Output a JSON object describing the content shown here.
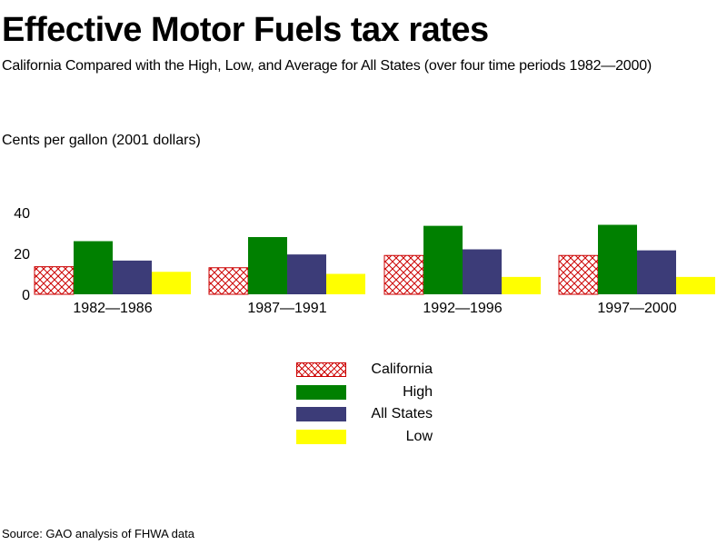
{
  "title": "Effective Motor Fuels tax rates",
  "subtitle": "California Compared with the High, Low, and Average for All States (over four time periods 1982—2000)",
  "source": "Source: GAO analysis of FHWA data",
  "colors": {
    "California": "#cc0000",
    "High": "#008000",
    "All States": "#3c3c78",
    "Low": "#ffff00"
  },
  "chart_data": {
    "type": "bar",
    "title": "Effective Motor Fuels tax rates",
    "subtitle": "California Compared with the High, Low, and Average for All States (over four time periods 1982—2000)",
    "ylabel": "Cents per gallon (2001 dollars)",
    "xlabel": "",
    "categories": [
      "1982—1986",
      "1987—1991",
      "1992—1996",
      "1997—2000"
    ],
    "series": [
      {
        "name": "California",
        "values": [
          13.5,
          13,
          19,
          19
        ]
      },
      {
        "name": "High",
        "values": [
          26,
          28,
          33.5,
          34
        ]
      },
      {
        "name": "All States",
        "values": [
          16.5,
          19.5,
          22,
          21.5
        ]
      },
      {
        "name": "Low",
        "values": [
          11,
          10,
          8.5,
          8.5
        ]
      }
    ],
    "ylim": [
      0,
      40
    ],
    "yticks": [
      "0",
      "20",
      "40"
    ],
    "grid": false,
    "legend_position": "bottom-center"
  }
}
